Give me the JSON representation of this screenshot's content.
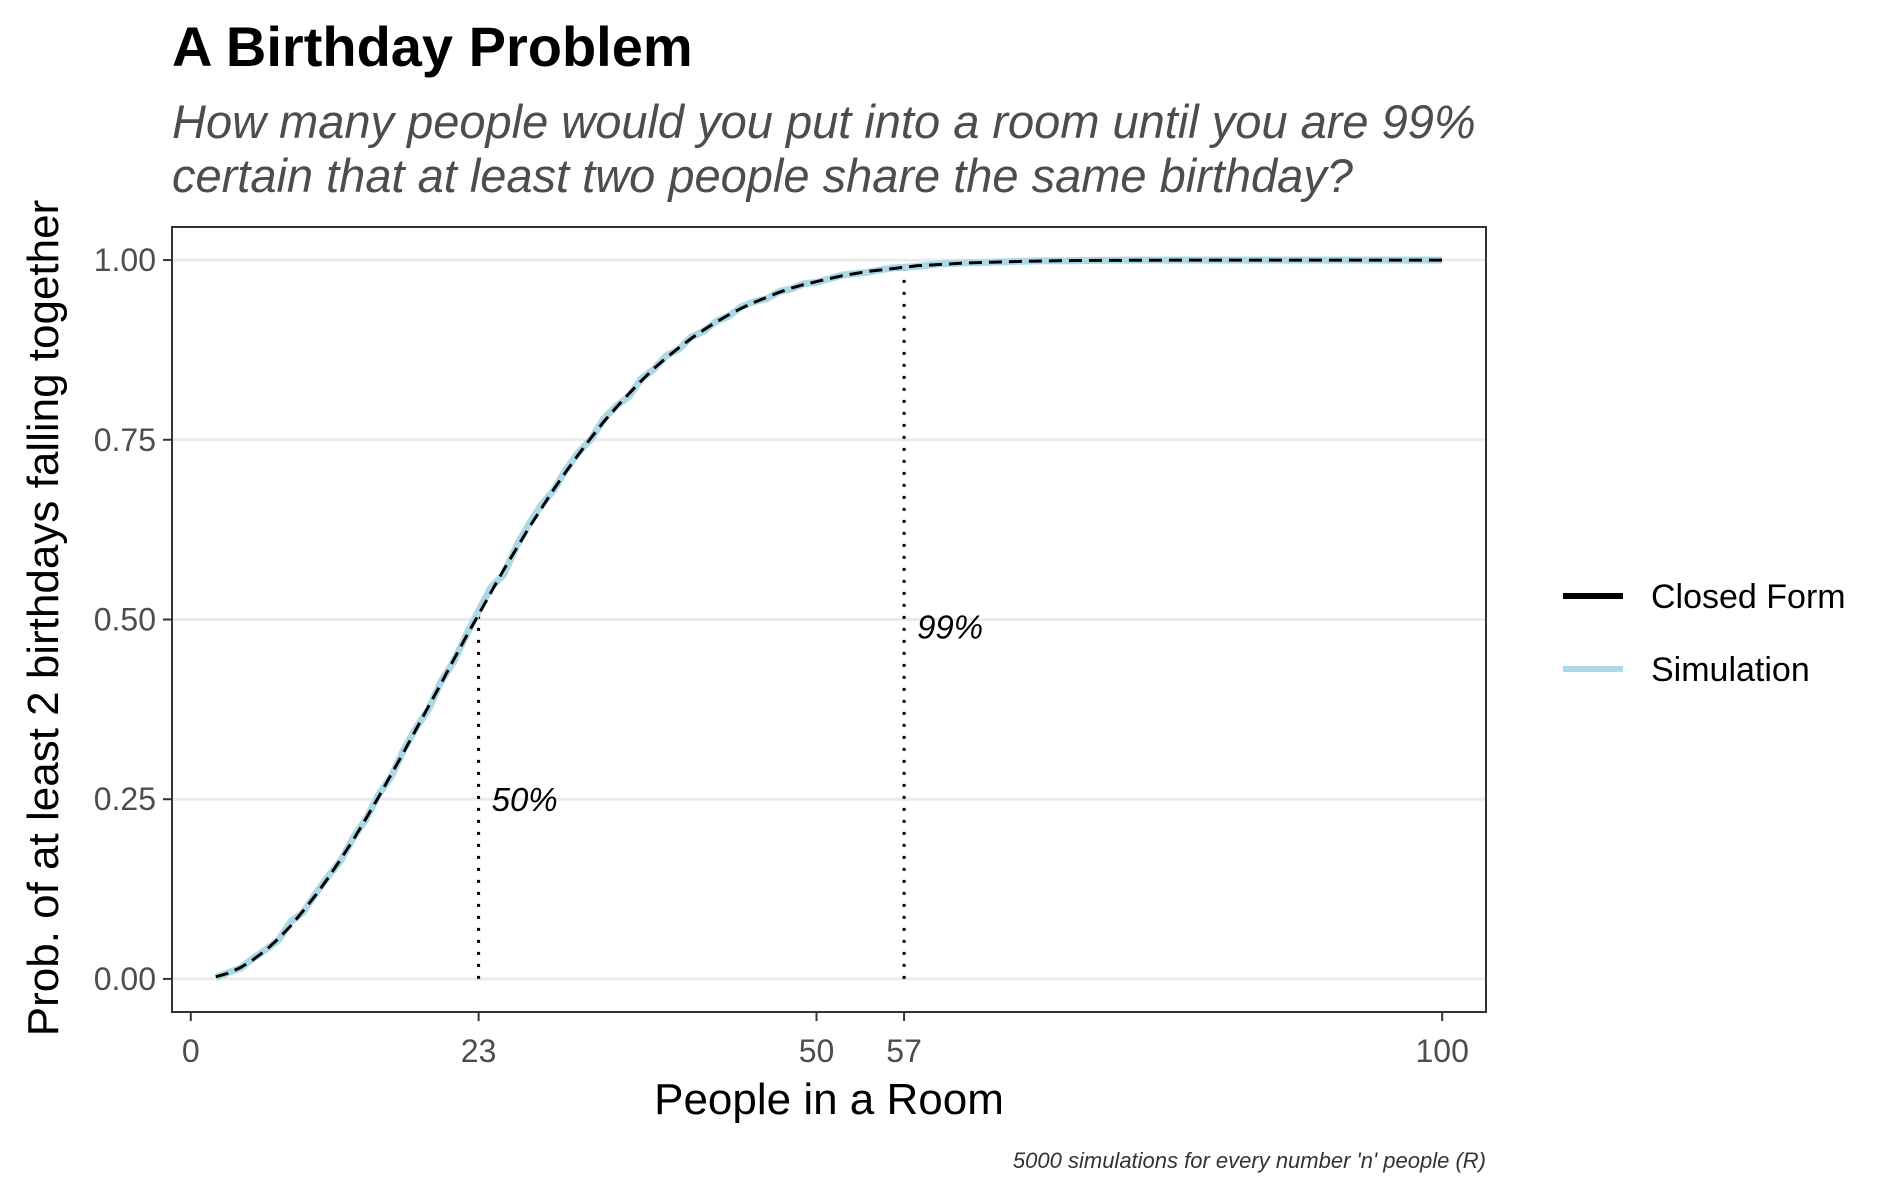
{
  "chart_data": {
    "type": "line",
    "title": "A Birthday Problem",
    "subtitle": [
      "How many people would you put into a room until you are 99%",
      "certain that at least two people share the same birthday?"
    ],
    "xlabel": "People in a Room",
    "ylabel": "Prob. of at least 2 birthdays falling together",
    "caption": "5000 simulations for every number 'n' people (R)",
    "xlim": [
      -1.5,
      103.5
    ],
    "ylim": [
      -0.046,
      1.046
    ],
    "x_ticks": [
      0,
      23,
      50,
      57,
      100
    ],
    "x_tick_labels": [
      "0",
      "23",
      "50",
      "57",
      "100"
    ],
    "y_ticks": [
      0,
      0.25,
      0.5,
      0.75,
      1
    ],
    "y_tick_labels": [
      "0.00",
      "0.25",
      "0.50",
      "0.75",
      "1.00"
    ],
    "grid": "horizontal",
    "legend_position": "right",
    "series": [
      {
        "name": "Closed Form",
        "color": "#000000",
        "style": "dashed",
        "x": [
          2,
          3,
          4,
          5,
          6,
          7,
          8,
          9,
          10,
          11,
          12,
          13,
          14,
          15,
          16,
          17,
          18,
          19,
          20,
          21,
          22,
          23,
          24,
          25,
          26,
          27,
          28,
          29,
          30,
          31,
          32,
          33,
          34,
          35,
          36,
          37,
          38,
          39,
          40,
          41,
          42,
          43,
          44,
          45,
          46,
          47,
          48,
          49,
          50,
          52,
          54,
          56,
          57,
          58,
          60,
          62,
          64,
          66,
          68,
          70,
          75,
          80,
          85,
          90,
          95,
          100
        ],
        "values": [
          0.003,
          0.008,
          0.016,
          0.027,
          0.04,
          0.056,
          0.074,
          0.095,
          0.117,
          0.141,
          0.167,
          0.194,
          0.223,
          0.253,
          0.284,
          0.315,
          0.347,
          0.379,
          0.411,
          0.444,
          0.476,
          0.507,
          0.538,
          0.569,
          0.598,
          0.627,
          0.654,
          0.681,
          0.706,
          0.73,
          0.753,
          0.775,
          0.795,
          0.814,
          0.832,
          0.849,
          0.864,
          0.878,
          0.891,
          0.903,
          0.914,
          0.924,
          0.933,
          0.941,
          0.948,
          0.955,
          0.961,
          0.966,
          0.97,
          0.978,
          0.984,
          0.988,
          0.99,
          0.992,
          0.994,
          0.996,
          0.997,
          0.998,
          0.9987,
          0.9992,
          0.9997,
          0.9999,
          1.0,
          1.0,
          1.0,
          1.0
        ]
      },
      {
        "name": "Simulation",
        "color": "#add8e6",
        "style": "solid",
        "x": [
          2,
          3,
          4,
          5,
          6,
          7,
          8,
          9,
          10,
          11,
          12,
          13,
          14,
          15,
          16,
          17,
          18,
          19,
          20,
          21,
          22,
          23,
          24,
          25,
          26,
          27,
          28,
          29,
          30,
          31,
          32,
          33,
          34,
          35,
          36,
          37,
          38,
          39,
          40,
          41,
          42,
          43,
          44,
          45,
          46,
          47,
          48,
          49,
          50,
          52,
          54,
          56,
          57,
          58,
          60,
          62,
          64,
          66,
          68,
          70,
          75,
          80,
          85,
          90,
          95,
          100
        ],
        "values": [
          0.002,
          0.009,
          0.015,
          0.029,
          0.041,
          0.054,
          0.08,
          0.093,
          0.119,
          0.143,
          0.165,
          0.197,
          0.222,
          0.256,
          0.281,
          0.318,
          0.349,
          0.375,
          0.414,
          0.441,
          0.478,
          0.512,
          0.545,
          0.562,
          0.601,
          0.632,
          0.659,
          0.68,
          0.709,
          0.733,
          0.751,
          0.779,
          0.797,
          0.81,
          0.835,
          0.848,
          0.867,
          0.876,
          0.893,
          0.901,
          0.915,
          0.922,
          0.935,
          0.942,
          0.946,
          0.956,
          0.96,
          0.967,
          0.969,
          0.979,
          0.983,
          0.989,
          0.99,
          0.991,
          0.995,
          0.996,
          0.997,
          0.998,
          0.999,
          0.999,
          1.0,
          1.0,
          1.0,
          1.0,
          1.0,
          1.0
        ]
      }
    ],
    "reference_lines": [
      {
        "x": 23,
        "y": 0.507,
        "label": "50%",
        "label_y": 0.25
      },
      {
        "x": 57,
        "y": 0.99,
        "label": "99%",
        "label_y": 0.49
      }
    ]
  }
}
